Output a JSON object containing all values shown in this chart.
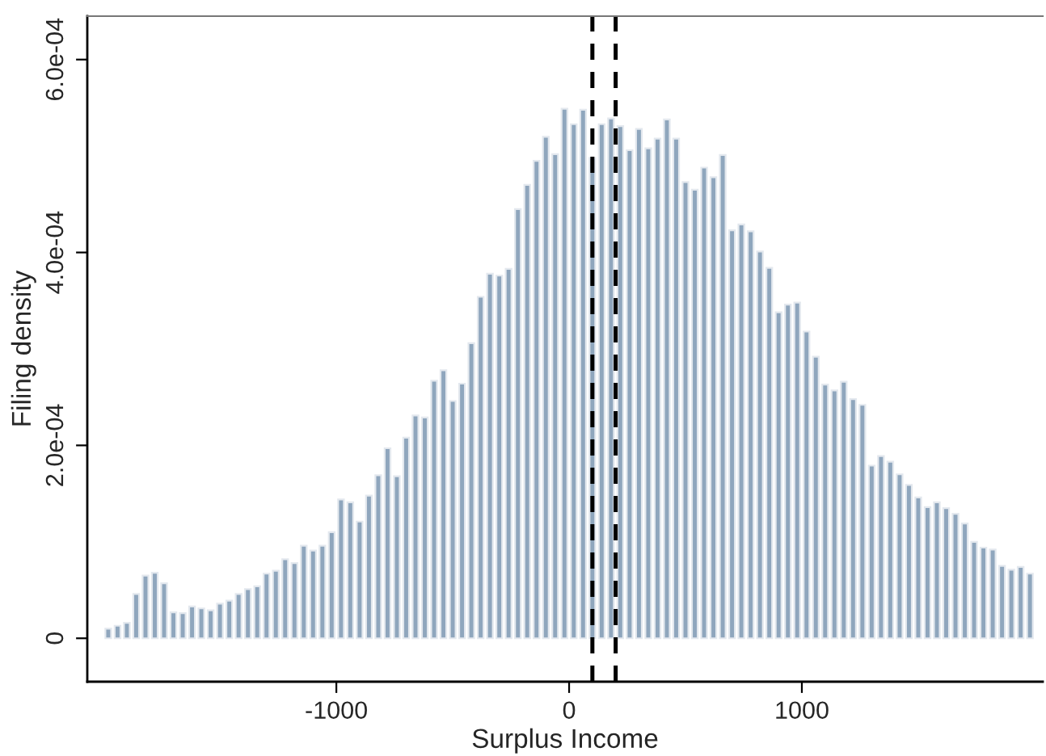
{
  "chart_data": {
    "type": "histogram",
    "xlabel": "Surplus Income",
    "ylabel": "Filing density",
    "color": "#8fa6bd",
    "bins": [
      -2000,
      -1960,
      -1920,
      -1880,
      -1840,
      -1800,
      -1760,
      -1720,
      -1680,
      -1640,
      -1600,
      -1560,
      -1520,
      -1480,
      -1440,
      -1400,
      -1360,
      -1320,
      -1280,
      -1240,
      -1200,
      -1160,
      -1120,
      -1080,
      -1040,
      -1000,
      -960,
      -920,
      -880,
      -840,
      -800,
      -760,
      -720,
      -680,
      -640,
      -600,
      -560,
      -520,
      -480,
      -440,
      -400,
      -360,
      -320,
      -280,
      -240,
      -200,
      -160,
      -120,
      -80,
      -40,
      0,
      40,
      80,
      120,
      160,
      200,
      240,
      280,
      320,
      360,
      400,
      440,
      480,
      520,
      560,
      600,
      640,
      680,
      720,
      760,
      800,
      840,
      880,
      920,
      960,
      1000,
      1040,
      1080,
      1120,
      1160,
      1200,
      1240,
      1280,
      1320,
      1360,
      1400,
      1440,
      1480,
      1520,
      1560,
      1600,
      1640,
      1680,
      1720,
      1760,
      1800,
      1840,
      1880,
      1920,
      1960,
      2000
    ],
    "values": [
      1e-05,
      1.3e-05,
      1.6e-05,
      4.6e-05,
      6.5e-05,
      6.8e-05,
      5.7e-05,
      2.7e-05,
      2.6e-05,
      3.3e-05,
      3.1e-05,
      2.9e-05,
      3.6e-05,
      3.9e-05,
      4.6e-05,
      5.1e-05,
      5.4e-05,
      6.7e-05,
      7e-05,
      8.2e-05,
      7.8e-05,
      9.6e-05,
      9.1e-05,
      9.6e-05,
      0.00011,
      0.000144,
      0.000141,
      0.000121,
      0.000148,
      0.000169,
      0.000197,
      0.000168,
      0.000208,
      0.000231,
      0.000229,
      0.000267,
      0.000278,
      0.000246,
      0.000264,
      0.000306,
      0.000354,
      0.000378,
      0.000376,
      0.000383,
      0.000445,
      0.00047,
      0.000495,
      0.00052,
      0.000502,
      0.000549,
      0.000533,
      0.000548,
      0.000498,
      0.000533,
      0.000539,
      0.000531,
      0.000506,
      0.000528,
      0.000508,
      0.000518,
      0.000538,
      0.000518,
      0.000473,
      0.000465,
      0.000488,
      0.000478,
      0.000501,
      0.000423,
      0.000429,
      0.000422,
      0.000401,
      0.000384,
      0.000338,
      0.000346,
      0.000348,
      0.000318,
      0.000292,
      0.000263,
      0.000257,
      0.000266,
      0.000248,
      0.000242,
      0.000179,
      0.000189,
      0.000183,
      0.00017,
      0.000159,
      0.000146,
      0.000136,
      0.000141,
      0.000135,
      0.000129,
      0.000119,
      0.0001,
      9.4e-05,
      9.2e-05,
      7.5e-05,
      7.1e-05,
      7.4e-05,
      6.7e-05
    ],
    "xlim": [
      -2070,
      2035
    ],
    "xticks": [
      -1000,
      0,
      1000
    ],
    "ylim": [
      -4.5e-05,
      0.000645
    ],
    "yticks": [
      0,
      {
        "value": 0.0002,
        "label": "2.0e-04"
      },
      {
        "value": 0.0004,
        "label": "4.0e-04"
      },
      {
        "value": 0.0006,
        "label": "6.0e-04"
      }
    ],
    "ref_lines": [
      {
        "axis": "x",
        "value": 100,
        "color": "#000000",
        "line_style": "dashed"
      },
      {
        "axis": "x",
        "value": 200,
        "color": "#000000",
        "line_style": "dashed"
      }
    ],
    "grid": false,
    "legend": false
  }
}
